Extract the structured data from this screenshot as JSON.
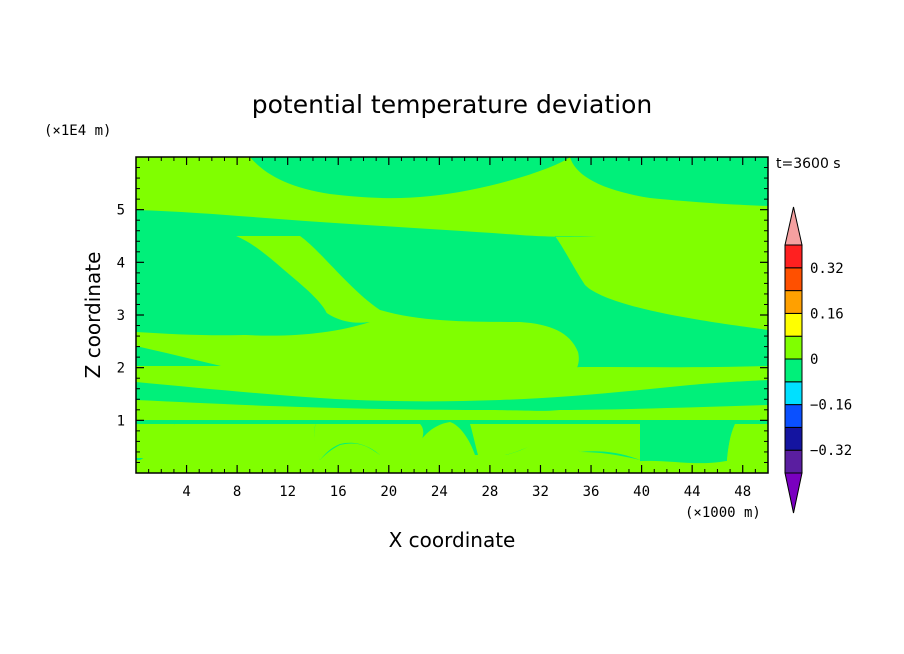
{
  "chart_data": {
    "type": "heatmap",
    "title": "potential temperature deviation",
    "xlabel": "X coordinate",
    "ylabel": "Z coordinate",
    "x_units": "(×1000 m)",
    "y_units": "(×1E4 m)",
    "time_label": "t=3600 s",
    "xlim": [
      0,
      50
    ],
    "ylim": [
      0,
      6
    ],
    "x_ticks": [
      4,
      8,
      12,
      16,
      20,
      24,
      28,
      32,
      36,
      40,
      44,
      48
    ],
    "y_ticks": [
      1,
      2,
      3,
      4,
      5
    ],
    "colorbar": {
      "levels": [
        -0.4,
        -0.32,
        -0.24,
        -0.16,
        -0.08,
        0,
        0.08,
        0.16,
        0.24,
        0.32,
        0.4
      ],
      "tick_labels": [
        {
          "value": 0.32,
          "label": "0.32"
        },
        {
          "value": 0.16,
          "label": "0.16"
        },
        {
          "value": 0,
          "label": "0"
        },
        {
          "value": -0.16,
          "label": "−0.16"
        },
        {
          "value": -0.32,
          "label": "−0.32"
        }
      ],
      "colors": [
        "#7a00c0",
        "#5a1ea0",
        "#1414a0",
        "#0a50ff",
        "#00e0ff",
        "#00f07a",
        "#80ff00",
        "#ffff00",
        "#ffa000",
        "#ff5000",
        "#ff2020",
        "#f5a0a0"
      ],
      "extend": "both"
    },
    "fields": {
      "positive_color": "#80ff00",
      "negative_color": "#00f07a"
    }
  }
}
